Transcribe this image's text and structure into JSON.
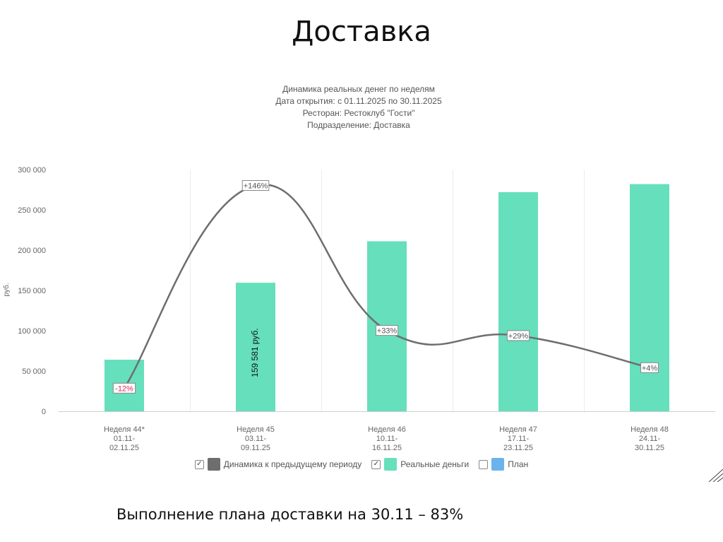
{
  "slide": {
    "title": "Доставка",
    "summary": "Выполнение плана доставки на 30.11 – 83%"
  },
  "chart_header": {
    "line1": "Динамика реальных денег по неделям",
    "line2": "Дата открытия: с 01.11.2025 по 30.11.2025",
    "line3": "Ресторан: Рестоклуб \"Гости\"",
    "line4": "Подразделение: Доставка"
  },
  "legend": {
    "item1": {
      "label": "Динамика к предыдущему периоду",
      "checked": true,
      "color": "#6e6e6e"
    },
    "item2": {
      "label": "Реальные деньги",
      "checked": true,
      "color": "#66dfbc"
    },
    "item3": {
      "label": "План",
      "checked": false,
      "color": "#6bb3ea"
    }
  },
  "chart_data": {
    "type": "bar",
    "ylabel": "руб.",
    "ylim": [
      0,
      300000
    ],
    "yticks": [
      "0",
      "50 000",
      "100 000",
      "150 000",
      "200 000",
      "250 000",
      "300 000"
    ],
    "grid": true,
    "categories": [
      [
        "Неделя 44*",
        "01.11-",
        "02.11.25"
      ],
      [
        "Неделя 45",
        "03.11-",
        "09.11.25"
      ],
      [
        "Неделя 46",
        "10.11-",
        "16.11.25"
      ],
      [
        "Неделя 47",
        "17.11-",
        "23.11.25"
      ],
      [
        "Неделя 48",
        "24.11-",
        "30.11.25"
      ]
    ],
    "series": [
      {
        "name": "Реальные деньги",
        "kind": "bar",
        "color": "#66dfbc",
        "values": [
          64000,
          159581,
          211000,
          272000,
          282000
        ]
      },
      {
        "name": "Динамика к предыдущему периоду",
        "kind": "line",
        "color": "#6e6e6e",
        "values": [
          -12,
          146,
          33,
          29,
          4
        ],
        "labels": [
          "-12%",
          "+146%",
          "+33%",
          "+29%",
          "+4%"
        ],
        "negative_label_color": "#e0245e"
      }
    ],
    "bar_value_label": {
      "index": 1,
      "text": "159 581 руб."
    }
  }
}
